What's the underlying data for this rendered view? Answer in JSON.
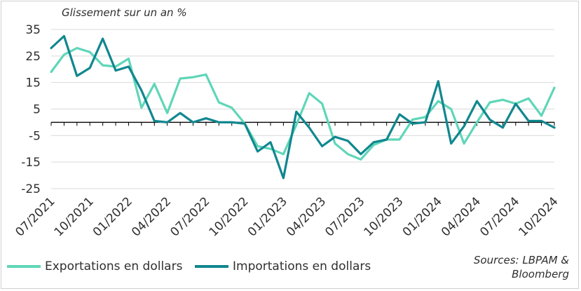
{
  "chart_data": {
    "type": "line",
    "ylabel": "Glissement sur un an %",
    "ylim": [
      -25,
      35
    ],
    "yticks": [
      35,
      25,
      15,
      5,
      -5,
      -15,
      -25
    ],
    "grid": true,
    "legend_placement": "bottom-left",
    "x_tick_labels": [
      "07/2021",
      "10/2021",
      "01/2022",
      "04/2022",
      "07/2022",
      "10/2022",
      "01/2023",
      "04/2023",
      "07/2023",
      "10/2023",
      "01/2024",
      "04/2024",
      "07/2024",
      "10/2024"
    ],
    "x": [
      "07/2021",
      "08/2021",
      "09/2021",
      "10/2021",
      "11/2021",
      "12/2021",
      "01/2022",
      "02/2022",
      "03/2022",
      "04/2022",
      "05/2022",
      "06/2022",
      "07/2022",
      "08/2022",
      "09/2022",
      "10/2022",
      "11/2022",
      "12/2022",
      "01/2023",
      "02/2023",
      "03/2023",
      "04/2023",
      "05/2023",
      "06/2023",
      "07/2023",
      "08/2023",
      "09/2023",
      "10/2023",
      "11/2023",
      "12/2023",
      "01/2024",
      "02/2024",
      "03/2024",
      "04/2024",
      "05/2024",
      "06/2024",
      "07/2024",
      "08/2024",
      "09/2024",
      "10/2024"
    ],
    "series": [
      {
        "name": "Exportations en dollars",
        "color": "#5fd6b8",
        "values": [
          19,
          25.5,
          28,
          26.5,
          21.5,
          21,
          24,
          5.5,
          14.5,
          3.5,
          16.5,
          17,
          18,
          7.5,
          5.5,
          -0.5,
          -9,
          -10,
          -12,
          -1,
          11,
          7,
          -8,
          -12,
          -14,
          -8.5,
          -6.5,
          -6.5,
          1,
          2,
          8,
          5,
          -8,
          0,
          7.5,
          8.5,
          7,
          9,
          2.5,
          13
        ]
      },
      {
        "name": "Importations en dollars",
        "color": "#11878f",
        "values": [
          28,
          32.5,
          17.5,
          20.5,
          31.5,
          19.5,
          21,
          12,
          0.5,
          0,
          3.5,
          0,
          1.5,
          0,
          0,
          -0.5,
          -11,
          -7.5,
          -21,
          4,
          -2,
          -9,
          -5.5,
          -7,
          -12,
          -7.5,
          -6.5,
          3,
          -0.5,
          0,
          15.5,
          -8,
          -1.5,
          8,
          1,
          -2,
          7,
          0.5,
          0.5,
          -2
        ]
      }
    ],
    "source": [
      "Sources: LBPAM &",
      "Bloomberg"
    ],
    "colors": {
      "axis": "#000000",
      "grid": "#d9d9d9",
      "text": "#2f2f2f"
    }
  }
}
